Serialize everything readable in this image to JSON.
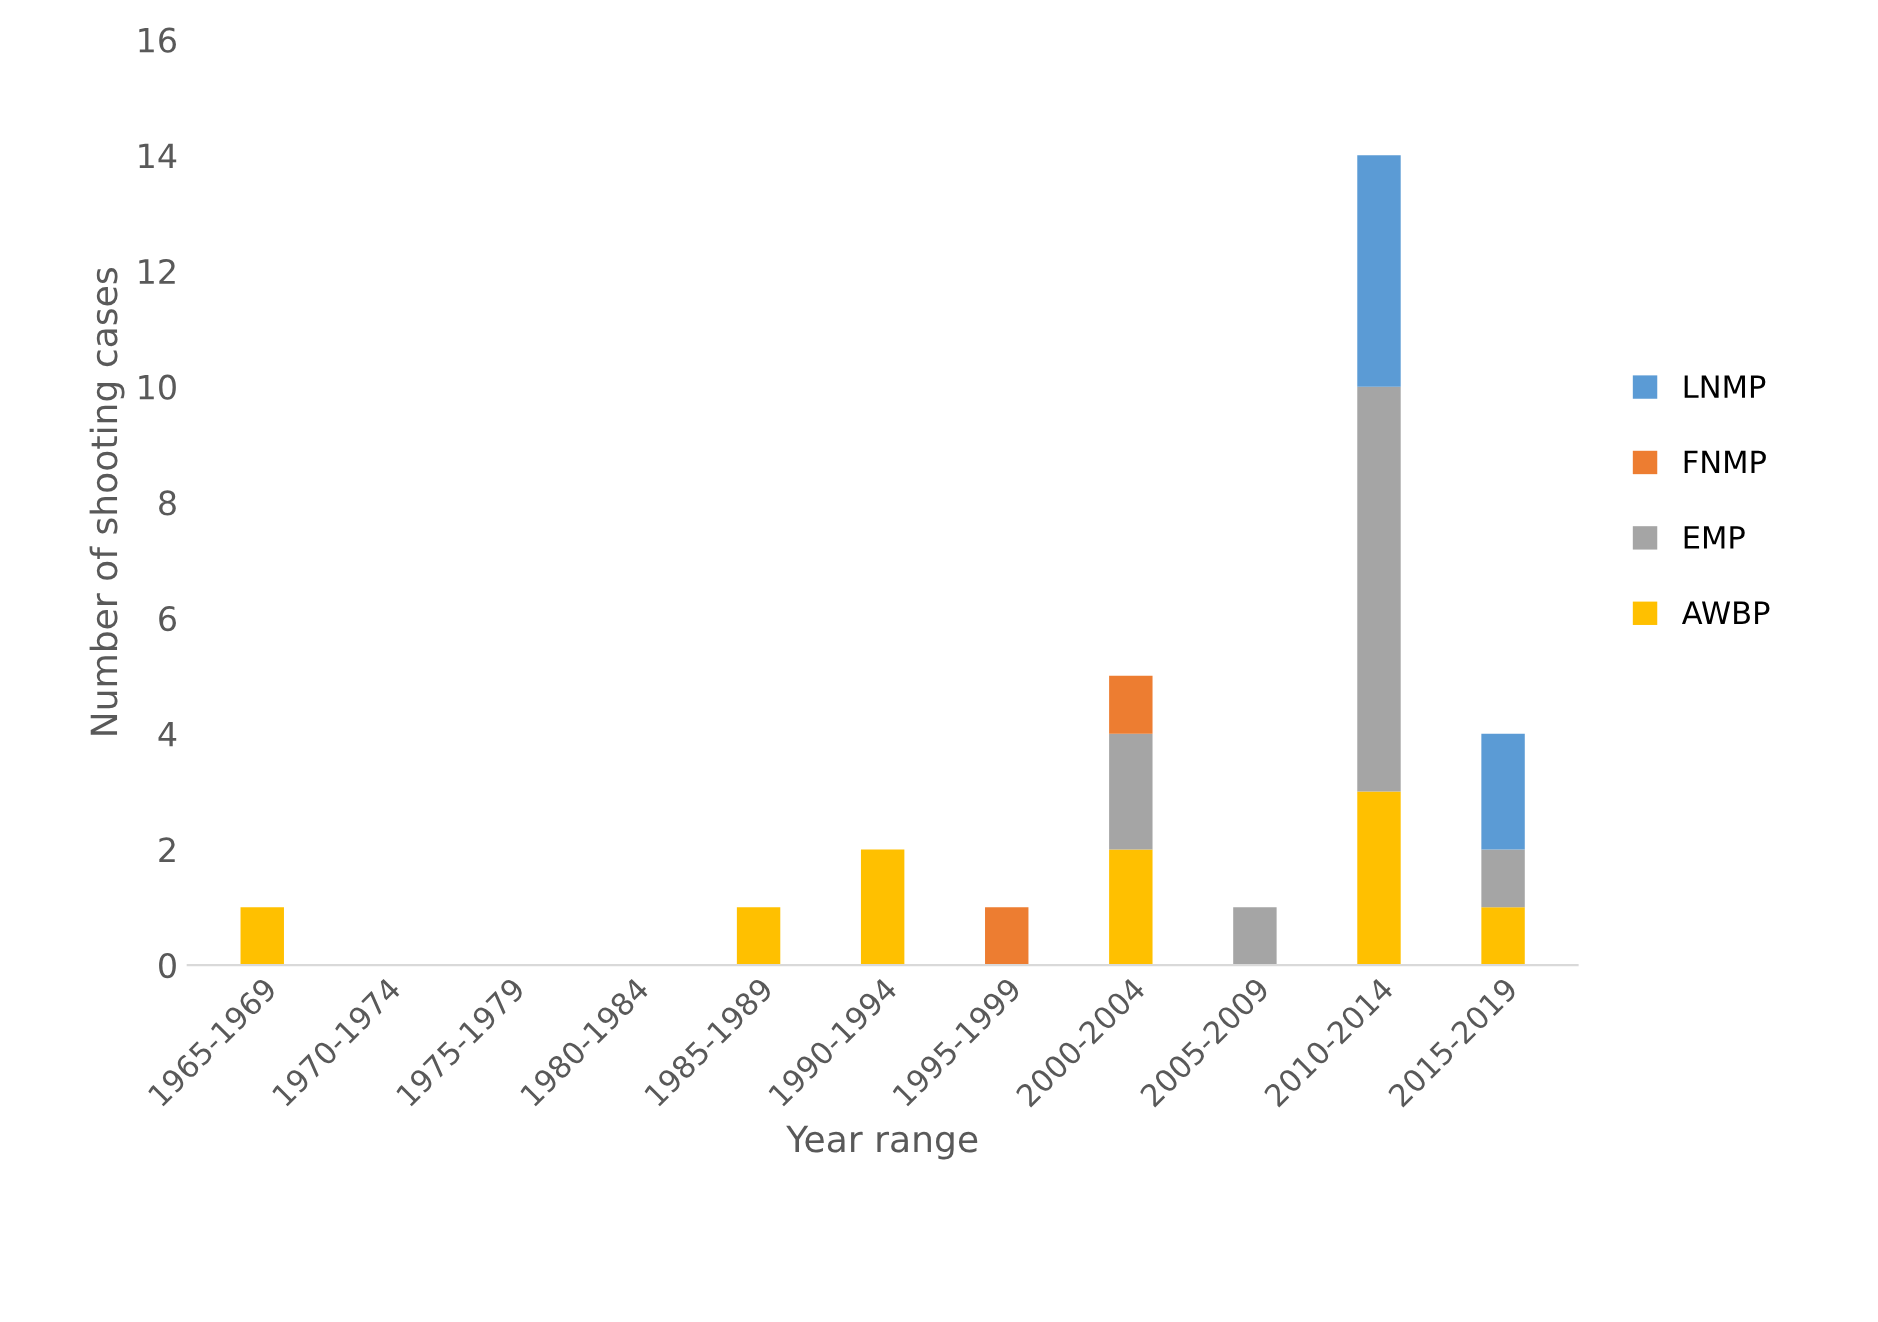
{
  "chart_data": {
    "type": "bar",
    "stacked": true,
    "xlabel": "Year range",
    "ylabel": "Number of shooting cases",
    "categories": [
      "1965-1969",
      "1970-1974",
      "1975-1979",
      "1980-1984",
      "1985-1989",
      "1990-1994",
      "1995-1999",
      "2000-2004",
      "2005-2009",
      "2010-2014",
      "2015-2019"
    ],
    "series": [
      {
        "name": "AWBP",
        "color": "#ffc000",
        "values": [
          1,
          0,
          0,
          0,
          1,
          2,
          0,
          2,
          0,
          3,
          1
        ]
      },
      {
        "name": "EMP",
        "color": "#a5a5a5",
        "values": [
          0,
          0,
          0,
          0,
          0,
          0,
          0,
          2,
          1,
          7,
          1
        ]
      },
      {
        "name": "FNMP",
        "color": "#ed7d31",
        "values": [
          0,
          0,
          0,
          0,
          0,
          0,
          1,
          1,
          0,
          0,
          0
        ]
      },
      {
        "name": "LNMP",
        "color": "#5b9bd5",
        "values": [
          0,
          0,
          0,
          0,
          0,
          0,
          0,
          0,
          0,
          4,
          2
        ]
      }
    ],
    "ylim": [
      0,
      16
    ],
    "yticks": [
      0,
      2,
      4,
      6,
      8,
      10,
      12,
      14,
      16
    ],
    "grid": false,
    "legend": "right"
  }
}
